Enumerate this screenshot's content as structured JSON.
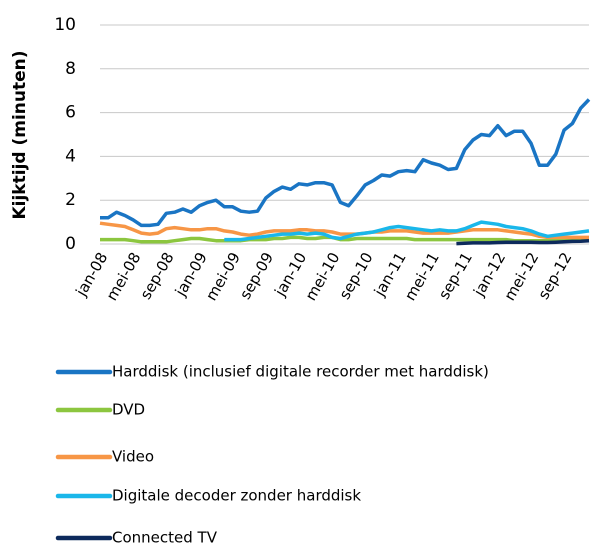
{
  "chart_data": {
    "type": "line",
    "y_label": "Kijktijd  (minuten)",
    "categories": [
      "jan-08",
      null,
      null,
      null,
      "mei-08",
      null,
      null,
      null,
      "sep-08",
      null,
      null,
      null,
      "jan-09",
      null,
      null,
      null,
      "mei-09",
      null,
      null,
      null,
      "sep-09",
      null,
      null,
      null,
      "jan-10",
      null,
      null,
      null,
      "mei-10",
      null,
      null,
      null,
      "sep-10",
      null,
      null,
      null,
      "jan-11",
      null,
      null,
      null,
      "mei-11",
      null,
      null,
      null,
      "sep-11",
      null,
      null,
      null,
      "jan-12",
      null,
      null,
      null,
      "mei-12",
      null,
      null,
      null,
      "sep-12",
      null,
      null,
      null
    ],
    "ylim": [
      0,
      10
    ],
    "yticks": [
      0,
      2,
      4,
      6,
      8,
      10
    ],
    "grid": true,
    "series": [
      {
        "name": "Harddisk (inclusief digitale recorder met harddisk)",
        "color": "#1a75c4",
        "values": [
          1.2,
          1.2,
          1.45,
          1.3,
          1.1,
          0.85,
          0.85,
          0.9,
          1.4,
          1.45,
          1.6,
          1.45,
          1.75,
          1.9,
          2.0,
          1.7,
          1.7,
          1.5,
          1.45,
          1.5,
          2.1,
          2.4,
          2.6,
          2.5,
          2.75,
          2.7,
          2.8,
          2.8,
          2.7,
          1.9,
          1.75,
          2.2,
          2.7,
          2.9,
          3.15,
          3.1,
          3.3,
          3.35,
          3.3,
          3.85,
          3.7,
          3.6,
          3.4,
          3.45,
          4.3,
          4.75,
          5.0,
          4.95,
          5.4,
          4.95,
          5.15,
          5.15,
          4.6,
          3.6,
          3.6,
          4.1,
          5.2,
          5.5,
          6.2,
          6.6
        ]
      },
      {
        "name": "DVD",
        "color": "#8cc63f",
        "values": [
          0.2,
          0.2,
          0.2,
          0.2,
          0.15,
          0.1,
          0.1,
          0.1,
          0.1,
          0.15,
          0.2,
          0.25,
          0.25,
          0.2,
          0.15,
          0.15,
          0.15,
          0.15,
          0.2,
          0.2,
          0.2,
          0.25,
          0.25,
          0.3,
          0.3,
          0.25,
          0.25,
          0.3,
          0.3,
          0.2,
          0.2,
          0.25,
          0.25,
          0.25,
          0.25,
          0.25,
          0.25,
          0.25,
          0.2,
          0.2,
          0.2,
          0.2,
          0.2,
          0.2,
          0.2,
          0.2,
          0.2,
          0.2,
          0.2,
          0.2,
          0.15,
          0.15,
          0.15,
          0.15,
          0.15,
          0.15,
          0.15,
          0.15,
          0.15,
          0.15
        ]
      },
      {
        "name": "Video",
        "color": "#f79646",
        "values": [
          0.95,
          0.9,
          0.85,
          0.8,
          0.65,
          0.5,
          0.45,
          0.5,
          0.7,
          0.75,
          0.7,
          0.65,
          0.65,
          0.7,
          0.7,
          0.6,
          0.55,
          0.45,
          0.4,
          0.45,
          0.55,
          0.6,
          0.6,
          0.6,
          0.65,
          0.65,
          0.6,
          0.6,
          0.55,
          0.45,
          0.45,
          0.45,
          0.5,
          0.55,
          0.55,
          0.6,
          0.6,
          0.6,
          0.55,
          0.5,
          0.5,
          0.5,
          0.5,
          0.55,
          0.6,
          0.65,
          0.65,
          0.65,
          0.65,
          0.6,
          0.55,
          0.5,
          0.45,
          0.35,
          0.3,
          0.3,
          0.3,
          0.3,
          0.3,
          0.3
        ]
      },
      {
        "name": "Digitale decoder zonder harddisk",
        "color": "#1ab7ea",
        "values": [
          null,
          null,
          null,
          null,
          null,
          null,
          null,
          null,
          null,
          null,
          null,
          null,
          null,
          null,
          null,
          0.2,
          0.2,
          0.2,
          0.25,
          0.3,
          0.35,
          0.4,
          0.45,
          0.45,
          0.5,
          0.45,
          0.5,
          0.45,
          0.3,
          0.25,
          0.35,
          0.45,
          0.5,
          0.55,
          0.65,
          0.75,
          0.8,
          0.75,
          0.7,
          0.65,
          0.6,
          0.65,
          0.6,
          0.6,
          0.7,
          0.85,
          1.0,
          0.95,
          0.9,
          0.8,
          0.75,
          0.7,
          0.6,
          0.45,
          0.35,
          0.4,
          0.45,
          0.5,
          0.55,
          0.6
        ]
      },
      {
        "name": "Connected TV",
        "color": "#0d2a5c",
        "values": [
          null,
          null,
          null,
          null,
          null,
          null,
          null,
          null,
          null,
          null,
          null,
          null,
          null,
          null,
          null,
          null,
          null,
          null,
          null,
          null,
          null,
          null,
          null,
          null,
          null,
          null,
          null,
          null,
          null,
          null,
          null,
          null,
          null,
          null,
          null,
          null,
          null,
          null,
          null,
          null,
          null,
          null,
          null,
          0.02,
          0.03,
          0.05,
          0.05,
          0.05,
          0.07,
          0.08,
          0.08,
          0.08,
          0.08,
          0.07,
          0.07,
          0.08,
          0.1,
          0.12,
          0.13,
          0.15
        ]
      }
    ]
  }
}
